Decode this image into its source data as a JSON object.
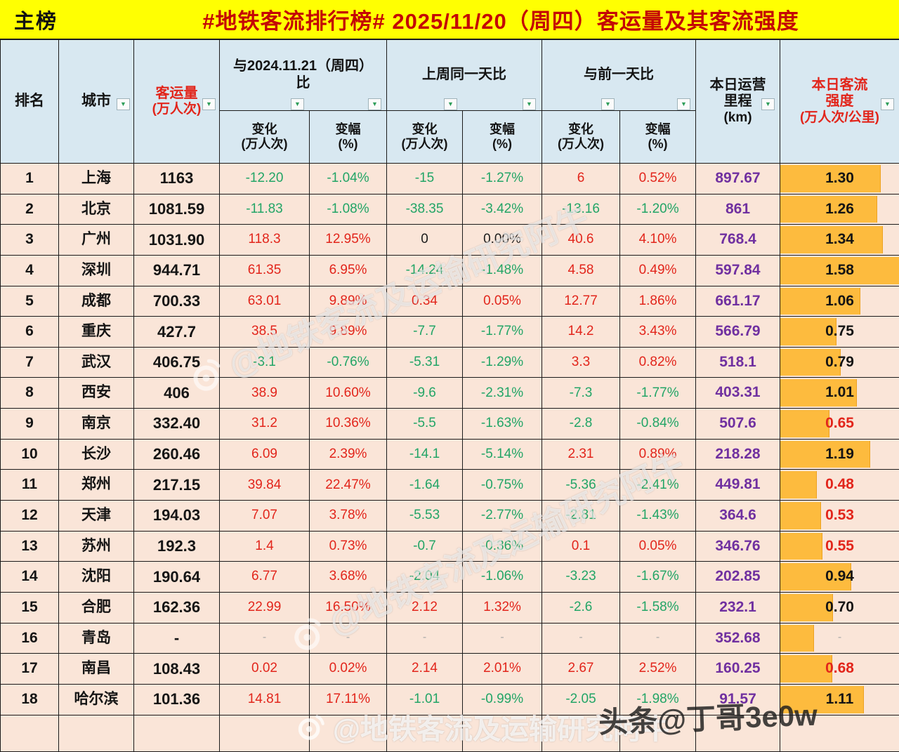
{
  "colors": {
    "title_bg": "#ffff02",
    "title_red": "#c40606",
    "header_bg": "#d8e8f1",
    "row_bg": "#fae5d8",
    "positive_red": "#e2251b",
    "negative_green": "#22a566",
    "mileage_purple": "#7030a0",
    "bar_orange": "#fdbb3e"
  },
  "title_bar": {
    "board_label": "主榜",
    "title": "#地铁客流排行榜# 2025/11/20（周四）客运量及其客流强度"
  },
  "chart_data": {
    "type": "table",
    "title": "#地铁客流排行榜# 2025/11/20（周四）客运量及其客流强度",
    "header": {
      "rank": "排名",
      "city": "城市",
      "volume": [
        "客运量",
        "(万人次)"
      ],
      "groups": [
        "与2024.11.21（周四）比",
        "上周同一天比",
        "与前一天比"
      ],
      "sub_change": [
        "变化",
        "(万人次)"
      ],
      "sub_pct": [
        "变幅",
        "(%)"
      ],
      "mileage": [
        "本日运营",
        "里程",
        "(km)"
      ],
      "intensity": [
        "本日客流",
        "强度",
        "(万人次/公里)"
      ]
    },
    "rows": [
      {
        "rank": "1",
        "city": "上海",
        "volume": "1163",
        "changes": [
          [
            "-12.20",
            "neg"
          ],
          [
            "-1.04%",
            "neg"
          ],
          [
            "-15",
            "neg"
          ],
          [
            "-1.27%",
            "neg"
          ],
          [
            "6",
            "pos"
          ],
          [
            "0.52%",
            "pos"
          ]
        ],
        "mileage": "897.67",
        "intensity": [
          "1.30",
          "black",
          84
        ]
      },
      {
        "rank": "2",
        "city": "北京",
        "volume": "1081.59",
        "changes": [
          [
            "-11.83",
            "neg"
          ],
          [
            "-1.08%",
            "neg"
          ],
          [
            "-38.35",
            "neg"
          ],
          [
            "-3.42%",
            "neg"
          ],
          [
            "-13.16",
            "neg"
          ],
          [
            "-1.20%",
            "neg"
          ]
        ],
        "mileage": "861",
        "intensity": [
          "1.26",
          "black",
          81
        ]
      },
      {
        "rank": "3",
        "city": "广州",
        "volume": "1031.90",
        "changes": [
          [
            "118.3",
            "pos"
          ],
          [
            "12.95%",
            "pos"
          ],
          [
            "0",
            "zero"
          ],
          [
            "0.00%",
            "zero"
          ],
          [
            "40.6",
            "pos"
          ],
          [
            "4.10%",
            "pos"
          ]
        ],
        "mileage": "768.4",
        "intensity": [
          "1.34",
          "black",
          86
        ]
      },
      {
        "rank": "4",
        "city": "深圳",
        "volume": "944.71",
        "changes": [
          [
            "61.35",
            "pos"
          ],
          [
            "6.95%",
            "pos"
          ],
          [
            "-14.24",
            "neg"
          ],
          [
            "-1.48%",
            "neg"
          ],
          [
            "4.58",
            "pos"
          ],
          [
            "0.49%",
            "pos"
          ]
        ],
        "mileage": "597.84",
        "intensity": [
          "1.58",
          "black",
          100
        ]
      },
      {
        "rank": "5",
        "city": "成都",
        "volume": "700.33",
        "changes": [
          [
            "63.01",
            "pos"
          ],
          [
            "9.89%",
            "pos"
          ],
          [
            "0.34",
            "pos"
          ],
          [
            "0.05%",
            "pos"
          ],
          [
            "12.77",
            "pos"
          ],
          [
            "1.86%",
            "pos"
          ]
        ],
        "mileage": "661.17",
        "intensity": [
          "1.06",
          "black",
          67
        ]
      },
      {
        "rank": "6",
        "city": "重庆",
        "volume": "427.7",
        "changes": [
          [
            "38.5",
            "pos"
          ],
          [
            "9.89%",
            "pos"
          ],
          [
            "-7.7",
            "neg"
          ],
          [
            "-1.77%",
            "neg"
          ],
          [
            "14.2",
            "pos"
          ],
          [
            "3.43%",
            "pos"
          ]
        ],
        "mileage": "566.79",
        "intensity": [
          "0.75",
          "black",
          47
        ]
      },
      {
        "rank": "7",
        "city": "武汉",
        "volume": "406.75",
        "changes": [
          [
            "-3.1",
            "neg"
          ],
          [
            "-0.76%",
            "neg"
          ],
          [
            "-5.31",
            "neg"
          ],
          [
            "-1.29%",
            "neg"
          ],
          [
            "3.3",
            "pos"
          ],
          [
            "0.82%",
            "pos"
          ]
        ],
        "mileage": "518.1",
        "intensity": [
          "0.79",
          "black",
          50
        ]
      },
      {
        "rank": "8",
        "city": "西安",
        "volume": "406",
        "changes": [
          [
            "38.9",
            "pos"
          ],
          [
            "10.60%",
            "pos"
          ],
          [
            "-9.6",
            "neg"
          ],
          [
            "-2.31%",
            "neg"
          ],
          [
            "-7.3",
            "neg"
          ],
          [
            "-1.77%",
            "neg"
          ]
        ],
        "mileage": "403.31",
        "intensity": [
          "1.01",
          "black",
          64
        ]
      },
      {
        "rank": "9",
        "city": "南京",
        "volume": "332.40",
        "changes": [
          [
            "31.2",
            "pos"
          ],
          [
            "10.36%",
            "pos"
          ],
          [
            "-5.5",
            "neg"
          ],
          [
            "-1.63%",
            "neg"
          ],
          [
            "-2.8",
            "neg"
          ],
          [
            "-0.84%",
            "neg"
          ]
        ],
        "mileage": "507.6",
        "intensity": [
          "0.65",
          "red",
          41
        ]
      },
      {
        "rank": "10",
        "city": "长沙",
        "volume": "260.46",
        "changes": [
          [
            "6.09",
            "pos"
          ],
          [
            "2.39%",
            "pos"
          ],
          [
            "-14.1",
            "neg"
          ],
          [
            "-5.14%",
            "neg"
          ],
          [
            "2.31",
            "pos"
          ],
          [
            "0.89%",
            "pos"
          ]
        ],
        "mileage": "218.28",
        "intensity": [
          "1.19",
          "black",
          75
        ]
      },
      {
        "rank": "11",
        "city": "郑州",
        "volume": "217.15",
        "changes": [
          [
            "39.84",
            "pos"
          ],
          [
            "22.47%",
            "pos"
          ],
          [
            "-1.64",
            "neg"
          ],
          [
            "-0.75%",
            "neg"
          ],
          [
            "-5.36",
            "neg"
          ],
          [
            "-2.41%",
            "neg"
          ]
        ],
        "mileage": "449.81",
        "intensity": [
          "0.48",
          "red",
          30
        ]
      },
      {
        "rank": "12",
        "city": "天津",
        "volume": "194.03",
        "changes": [
          [
            "7.07",
            "pos"
          ],
          [
            "3.78%",
            "pos"
          ],
          [
            "-5.53",
            "neg"
          ],
          [
            "-2.77%",
            "neg"
          ],
          [
            "-2.81",
            "neg"
          ],
          [
            "-1.43%",
            "neg"
          ]
        ],
        "mileage": "364.6",
        "intensity": [
          "0.53",
          "red",
          34
        ]
      },
      {
        "rank": "13",
        "city": "苏州",
        "volume": "192.3",
        "changes": [
          [
            "1.4",
            "pos"
          ],
          [
            "0.73%",
            "pos"
          ],
          [
            "-0.7",
            "neg"
          ],
          [
            "-0.36%",
            "neg"
          ],
          [
            "0.1",
            "pos"
          ],
          [
            "0.05%",
            "pos"
          ]
        ],
        "mileage": "346.76",
        "intensity": [
          "0.55",
          "red",
          35
        ]
      },
      {
        "rank": "14",
        "city": "沈阳",
        "volume": "190.64",
        "changes": [
          [
            "6.77",
            "pos"
          ],
          [
            "3.68%",
            "pos"
          ],
          [
            "-2.04",
            "neg"
          ],
          [
            "-1.06%",
            "neg"
          ],
          [
            "-3.23",
            "neg"
          ],
          [
            "-1.67%",
            "neg"
          ]
        ],
        "mileage": "202.85",
        "intensity": [
          "0.94",
          "black",
          59
        ]
      },
      {
        "rank": "15",
        "city": "合肥",
        "volume": "162.36",
        "changes": [
          [
            "22.99",
            "pos"
          ],
          [
            "16.50%",
            "pos"
          ],
          [
            "2.12",
            "pos"
          ],
          [
            "1.32%",
            "pos"
          ],
          [
            "-2.6",
            "neg"
          ],
          [
            "-1.58%",
            "neg"
          ]
        ],
        "mileage": "232.1",
        "intensity": [
          "0.70",
          "black",
          44
        ]
      },
      {
        "rank": "16",
        "city": "青岛",
        "volume": "-",
        "changes": [
          [
            "-",
            "dash"
          ],
          [
            "-",
            "dash"
          ],
          [
            "-",
            "dash"
          ],
          [
            "-",
            "dash"
          ],
          [
            "-",
            "dash"
          ],
          [
            "-",
            "dash"
          ]
        ],
        "mileage": "352.68",
        "intensity": [
          "-",
          "dash",
          28
        ]
      },
      {
        "rank": "17",
        "city": "南昌",
        "volume": "108.43",
        "changes": [
          [
            "0.02",
            "pos"
          ],
          [
            "0.02%",
            "pos"
          ],
          [
            "2.14",
            "pos"
          ],
          [
            "2.01%",
            "pos"
          ],
          [
            "2.67",
            "pos"
          ],
          [
            "2.52%",
            "pos"
          ]
        ],
        "mileage": "160.25",
        "intensity": [
          "0.68",
          "red",
          43
        ]
      },
      {
        "rank": "18",
        "city": "哈尔滨",
        "volume": "101.36",
        "changes": [
          [
            "14.81",
            "pos"
          ],
          [
            "17.11%",
            "pos"
          ],
          [
            "-1.01",
            "neg"
          ],
          [
            "-0.99%",
            "neg"
          ],
          [
            "-2.05",
            "neg"
          ],
          [
            "-1.98%",
            "neg"
          ]
        ],
        "mileage": "91.57",
        "intensity": [
          "1.11",
          "black",
          70
        ]
      },
      {
        "rank": "",
        "city": "",
        "volume": "",
        "changes": [
          [
            "",
            ""
          ],
          [
            "",
            ""
          ],
          [
            "",
            ""
          ],
          [
            "",
            ""
          ],
          [
            "",
            ""
          ],
          [
            "",
            ""
          ]
        ],
        "mileage": "",
        "intensity": [
          "",
          "black",
          0
        ]
      }
    ]
  },
  "watermarks": {
    "weibo_handle": "@地铁客流及运输研究阿牛",
    "toutiao_handle": "头条@丁哥3e0w"
  }
}
